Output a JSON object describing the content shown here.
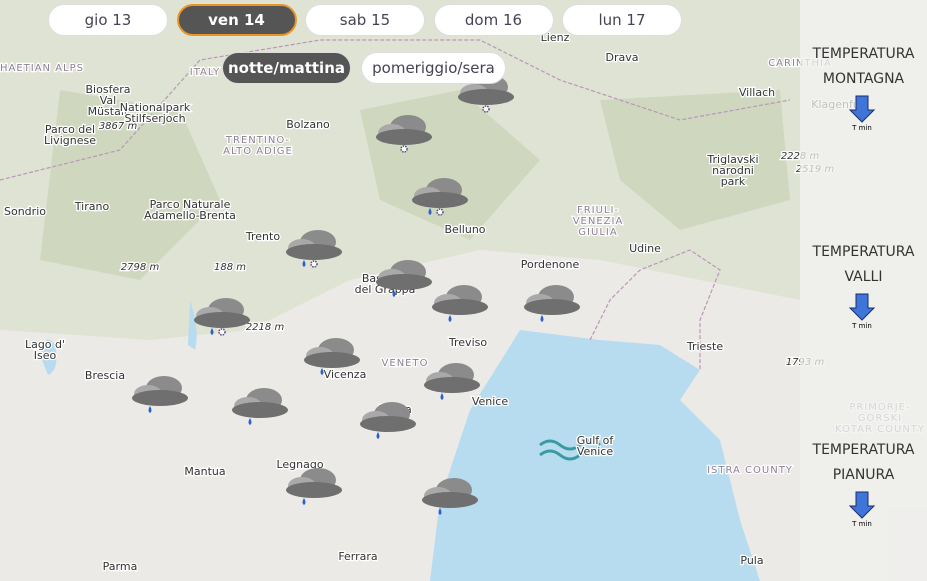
{
  "day_tabs": {
    "items": [
      "gio 13",
      "ven 14",
      "sab 15",
      "dom 16",
      "lun 17"
    ],
    "active": 1
  },
  "period_tabs": {
    "items": [
      "notte/mattina",
      "pomeriggio/sera"
    ],
    "active": 0
  },
  "side_panel": [
    {
      "lines": [
        "TEMPERATURA",
        "MONTAGNA"
      ],
      "icon_label": "T min"
    },
    {
      "lines": [
        "TEMPERATURA",
        "VALLI"
      ],
      "icon_label": "T min"
    },
    {
      "lines": [
        "TEMPERATURA",
        "PIANURA"
      ],
      "icon_label": "T min"
    }
  ],
  "map": {
    "labels": [
      [
        "Lienz"
      ],
      [
        "Drava"
      ],
      [
        "CARINTHIA"
      ],
      [
        "Villach"
      ],
      [
        "Klagenfurt"
      ],
      [
        "RHAETIAN ALPS"
      ],
      [
        "ITALY"
      ],
      [
        "Bolzano"
      ],
      [
        "Biosfera",
        "Val",
        "Müstair"
      ],
      [
        "Nationalpark",
        "Stilfserjoch"
      ],
      [
        "Parco del",
        "Livignese"
      ],
      [
        "3867 m"
      ],
      [
        "TRENTINO-",
        "ALTO ADIGE"
      ],
      [
        "Triglavski",
        "narodni",
        "park"
      ],
      [
        "2228 m"
      ],
      [
        "2519 m"
      ],
      [
        "Sondrio"
      ],
      [
        "Tirano"
      ],
      [
        "Parco Naturale",
        "Adamello-Brenta"
      ],
      [
        "FRIULI-",
        "VENEZIA",
        "GIULIA"
      ],
      [
        "Trento"
      ],
      [
        "Belluno"
      ],
      [
        "Udine"
      ],
      [
        "Pordenone"
      ],
      [
        "2798 m"
      ],
      [
        "188 m"
      ],
      [
        "Bassano",
        "del Grappa"
      ],
      [
        "2218 m"
      ],
      [
        "Lago d'",
        "Iseo"
      ],
      [
        "VENETO"
      ],
      [
        "Treviso"
      ],
      [
        "Trieste"
      ],
      [
        "1793 m"
      ],
      [
        "Brescia"
      ],
      [
        "Vicenza"
      ],
      [
        "Venice"
      ],
      [
        "Padua"
      ],
      [
        "Gulf of",
        "Venice"
      ],
      [
        "ISTRA COUNTY"
      ],
      [
        "PRIMORJE-",
        "GORSKI",
        "KOTAR COUNTY"
      ],
      [
        "Mantua"
      ],
      [
        "Legnago"
      ],
      [
        "Parma"
      ],
      [
        "Ferrara"
      ],
      [
        "Pula"
      ]
    ]
  }
}
